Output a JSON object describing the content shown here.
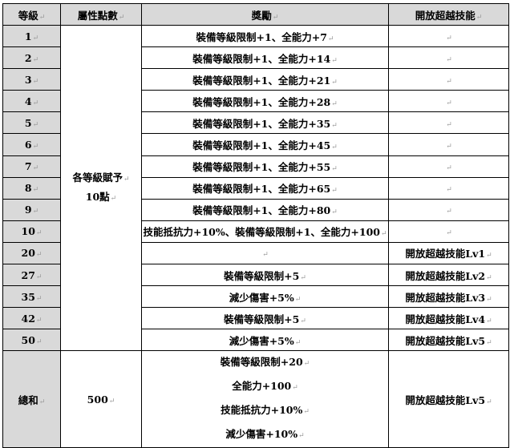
{
  "headers": [
    "等級",
    "屬性點數",
    "獎勵",
    "開放超越技能"
  ],
  "attribute_points": [
    "各等級賦予",
    "10點"
  ],
  "rows": [
    {
      "level": "1",
      "reward": "裝備等級限制+1、全能力+7",
      "skill": ""
    },
    {
      "level": "2",
      "reward": "裝備等級限制+1、全能力+14",
      "skill": ""
    },
    {
      "level": "3",
      "reward": "裝備等級限制+1、全能力+21",
      "skill": ""
    },
    {
      "level": "4",
      "reward": "裝備等級限制+1、全能力+28",
      "skill": ""
    },
    {
      "level": "5",
      "reward": "裝備等級限制+1、全能力+35",
      "skill": ""
    },
    {
      "level": "6",
      "reward": "裝備等級限制+1、全能力+45",
      "skill": ""
    },
    {
      "level": "7",
      "reward": "裝備等級限制+1、全能力+55",
      "skill": ""
    },
    {
      "level": "8",
      "reward": "裝備等級限制+1、全能力+65",
      "skill": ""
    },
    {
      "level": "9",
      "reward": "裝備等級限制+1、全能力+80",
      "skill": ""
    },
    {
      "level": "10",
      "reward": "技能抵抗力+10%、裝備等級限制+1、全能力+100",
      "skill": ""
    },
    {
      "level": "20",
      "reward": "",
      "skill": "開放超越技能Lv1"
    },
    {
      "level": "27",
      "reward": "裝備等級限制+5",
      "skill": "開放超越技能Lv2"
    },
    {
      "level": "35",
      "reward": "減少傷害+5%",
      "skill": "開放超越技能Lv3"
    },
    {
      "level": "42",
      "reward": "裝備等級限制+5",
      "skill": "開放超越技能Lv4"
    },
    {
      "level": "50",
      "reward": "減少傷害+5%",
      "skill": "開放超越技能Lv5"
    }
  ],
  "total": {
    "label": "總和",
    "points": "500",
    "rewards": [
      "裝備等級限制+20",
      "全能力+100",
      "技能抵抗力+10%",
      "減少傷害+10%"
    ],
    "skill": "開放超越技能Lv5"
  },
  "colors": {
    "header_bg": "#d9d9d9",
    "level_bg": "#d9d9d9",
    "border": "#000000"
  }
}
